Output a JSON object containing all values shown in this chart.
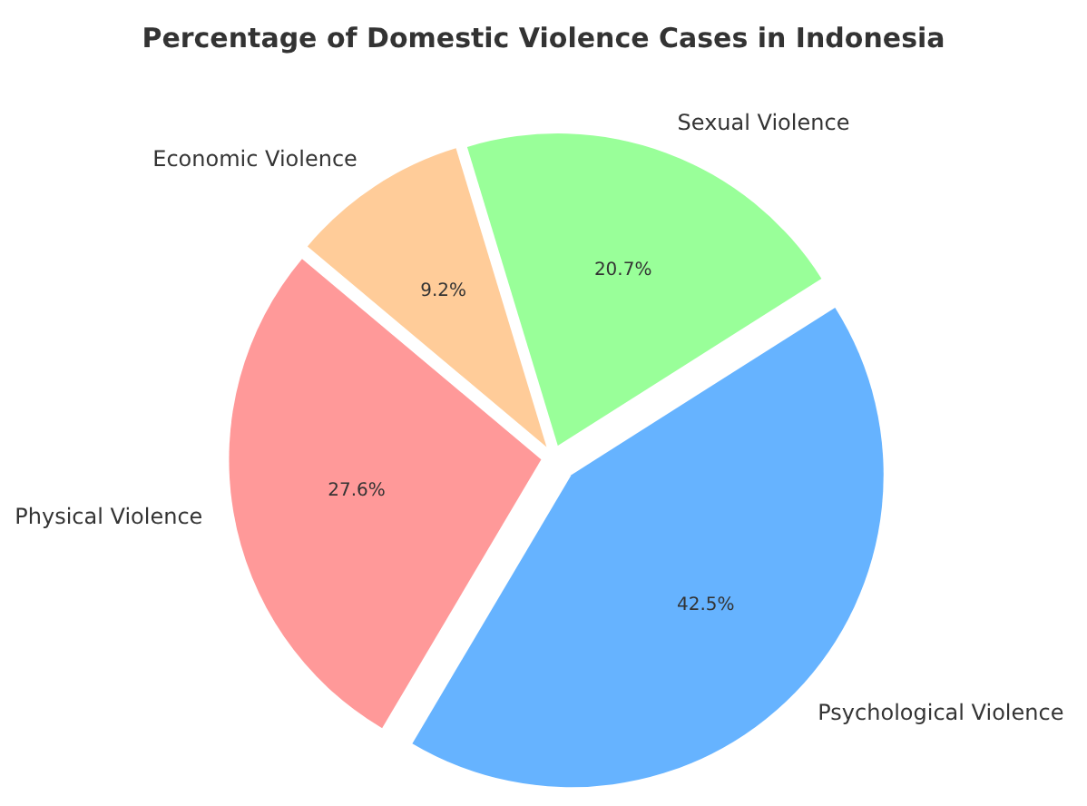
{
  "chart_data": {
    "type": "pie",
    "title": "Percentage of Domestic Violence Cases in Indonesia",
    "categories": [
      "Physical Violence",
      "Psychological Violence",
      "Sexual Violence",
      "Economic Violence"
    ],
    "values": [
      27.6,
      42.5,
      20.7,
      9.2
    ],
    "colors": [
      "#ff9999",
      "#66b3ff",
      "#99ff99",
      "#ffcc99"
    ],
    "value_labels": [
      "27.6%",
      "42.5%",
      "20.7%",
      "9.2%"
    ]
  }
}
